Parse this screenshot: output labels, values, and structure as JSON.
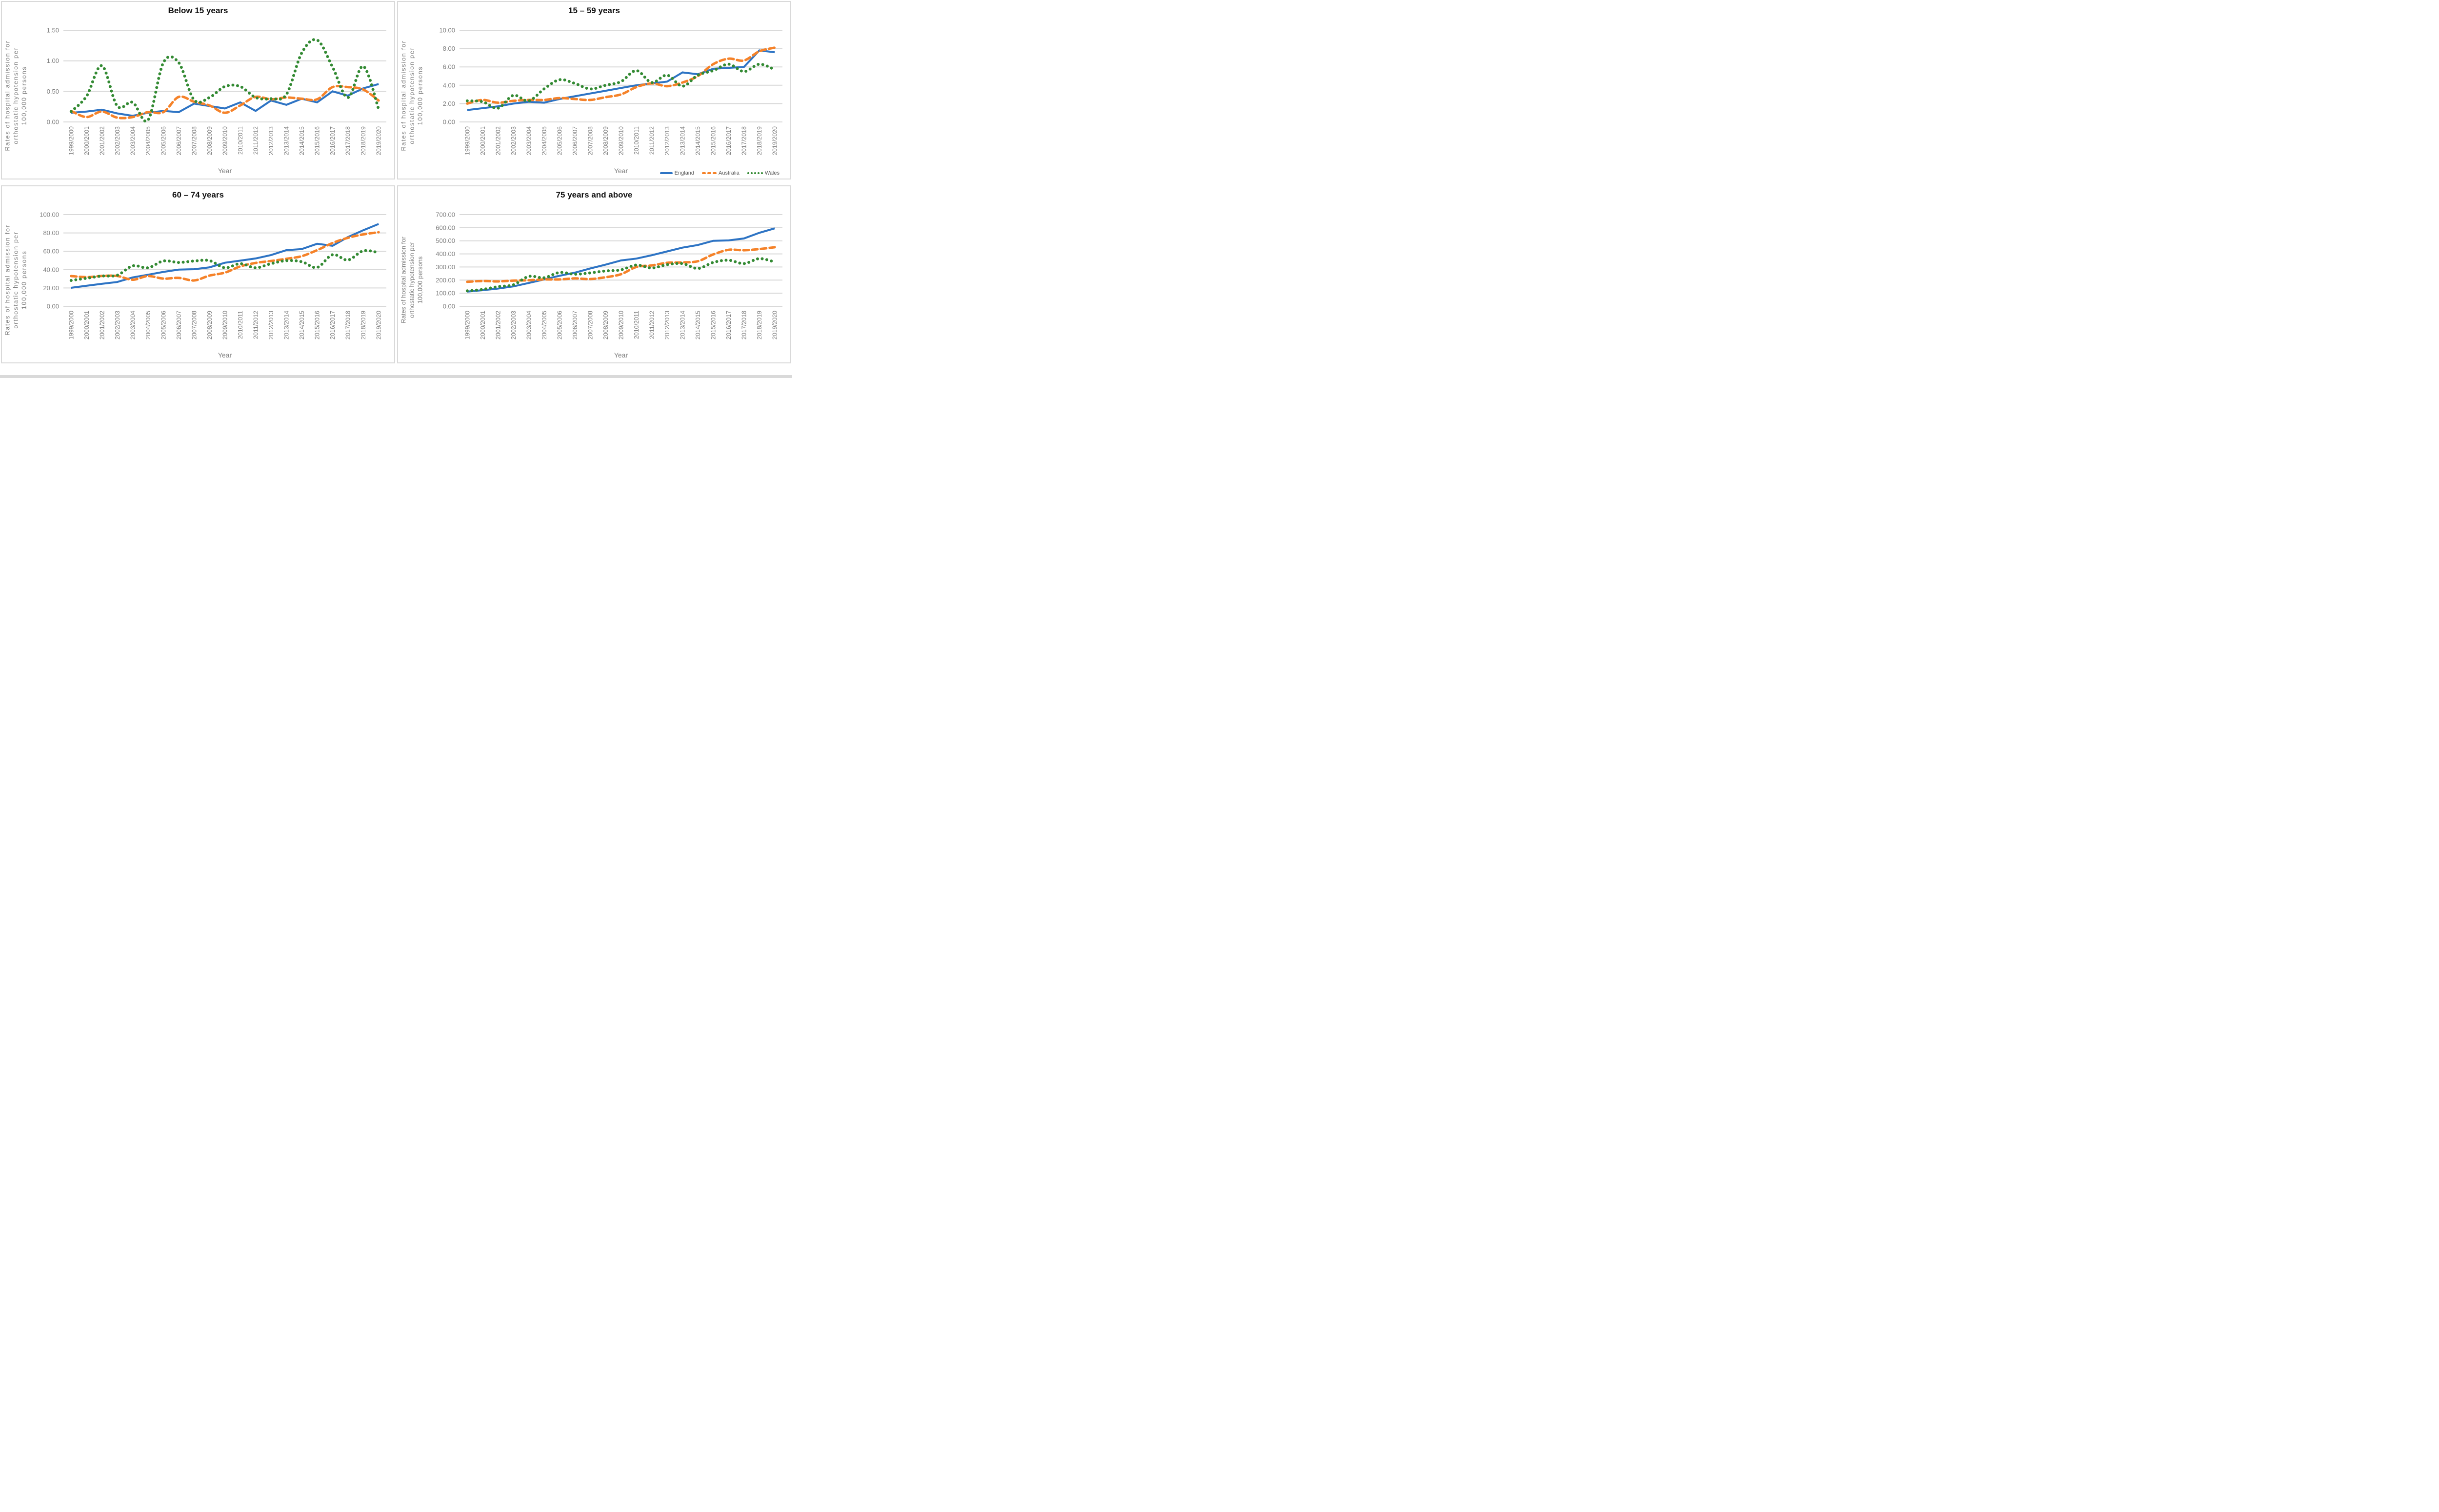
{
  "colors": {
    "england": "#2E74C4",
    "australia": "#F58229",
    "wales": "#338A33",
    "gridline": "#D9D9D9",
    "tick_text": "#7F7F7F",
    "axis_title_text": "#7F7F7F",
    "chart_title_text": "#111111",
    "panel_border": "#D9D9D9",
    "legend_text": "#595959"
  },
  "axis": {
    "ylabel_lines": [
      "Rates of hospital admission for",
      "orthostatic hypotension per",
      "100,000 persons"
    ],
    "xlabel": "Year"
  },
  "legend": {
    "items": [
      {
        "name": "england",
        "label": "England",
        "style": "solid"
      },
      {
        "name": "australia",
        "label": "Australia",
        "style": "dashed"
      },
      {
        "name": "wales",
        "label": "Wales",
        "style": "dotted"
      }
    ]
  },
  "chart_data": {
    "type": "line",
    "categories": [
      "1999/2000",
      "2000/2001",
      "2001/2002",
      "2002/2003",
      "2003/2004",
      "2004/2005",
      "2005/2006",
      "2006/2007",
      "2007/2008",
      "2008/2009",
      "2009/2010",
      "2010/2011",
      "2011/2012",
      "2012/2013",
      "2013/2014",
      "2014/2015",
      "2015/2016",
      "2016/2017",
      "2017/2018",
      "2018/2019",
      "2019/2020"
    ],
    "grid": "horizontal-only",
    "legend_position": "bottom-right-of-second-chart",
    "charts": [
      {
        "title": "Below 15 years",
        "ylim": [
          0,
          1.5
        ],
        "yticks": [
          0,
          0.5,
          1,
          1.5
        ],
        "ytick_labels": [
          "0.00",
          "0.50",
          "1.00",
          "1.50"
        ],
        "series": [
          {
            "name": "England",
            "color": "england",
            "style": "solid",
            "smooth": false,
            "values": [
              0.15,
              0.17,
              0.2,
              0.14,
              0.1,
              0.15,
              0.18,
              0.16,
              0.3,
              0.26,
              0.22,
              0.32,
              0.18,
              0.35,
              0.28,
              0.38,
              0.32,
              0.5,
              0.43,
              0.55,
              0.62
            ]
          },
          {
            "name": "Australia",
            "color": "australia",
            "style": "dashed",
            "smooth": true,
            "values": [
              0.18,
              0.08,
              0.17,
              0.07,
              0.08,
              0.16,
              0.16,
              0.41,
              0.33,
              0.27,
              0.15,
              0.27,
              0.41,
              0.37,
              0.4,
              0.38,
              0.37,
              0.57,
              0.57,
              0.53,
              0.35
            ]
          },
          {
            "name": "Wales",
            "color": "wales",
            "style": "dotted",
            "smooth": true,
            "values": [
              0.17,
              0.42,
              0.92,
              0.26,
              0.32,
              0.03,
              0.97,
              0.97,
              0.36,
              0.4,
              0.58,
              0.58,
              0.4,
              0.38,
              0.45,
              1.13,
              1.34,
              0.9,
              0.4,
              0.91,
              0.21
            ]
          }
        ]
      },
      {
        "title": "15 – 59 years",
        "ylim": [
          0,
          10
        ],
        "yticks": [
          0,
          2,
          4,
          6,
          8,
          10
        ],
        "ytick_labels": [
          "0.00",
          "2.00",
          "4.00",
          "6.00",
          "8.00",
          "10.00"
        ],
        "show_legend": true,
        "series": [
          {
            "name": "England",
            "color": "england",
            "style": "solid",
            "smooth": false,
            "values": [
              1.3,
              1.5,
              1.7,
              2.0,
              2.2,
              2.1,
              2.5,
              2.8,
              3.1,
              3.4,
              3.7,
              4.0,
              4.2,
              4.4,
              5.4,
              5.2,
              5.8,
              5.9,
              6.0,
              7.8,
              7.6
            ]
          },
          {
            "name": "Australia",
            "color": "australia",
            "style": "dashed",
            "smooth": true,
            "values": [
              2.0,
              2.4,
              2.1,
              2.3,
              2.4,
              2.4,
              2.6,
              2.5,
              2.4,
              2.7,
              3.0,
              3.8,
              4.2,
              3.9,
              4.3,
              5.0,
              6.3,
              6.9,
              6.7,
              7.7,
              8.1
            ]
          },
          {
            "name": "Wales",
            "color": "wales",
            "style": "dotted",
            "smooth": true,
            "values": [
              2.3,
              2.2,
              1.5,
              2.9,
              2.3,
              3.6,
              4.6,
              4.2,
              3.6,
              4.0,
              4.4,
              5.6,
              4.3,
              5.1,
              3.9,
              5.1,
              5.6,
              6.3,
              5.5,
              6.3,
              5.7
            ]
          }
        ]
      },
      {
        "title": "60 – 74 years",
        "ylim": [
          0,
          100
        ],
        "yticks": [
          0,
          20,
          40,
          60,
          80,
          100
        ],
        "ytick_labels": [
          "0.00",
          "20.00",
          "40.00",
          "60.00",
          "80.00",
          "100.00"
        ],
        "series": [
          {
            "name": "England",
            "color": "england",
            "style": "solid",
            "smooth": false,
            "values": [
              20.2,
              22.4,
              24.5,
              26.5,
              31.5,
              34.4,
              37.5,
              40.0,
              40.4,
              42.5,
              47.5,
              49.8,
              52.2,
              55.9,
              61.2,
              62.4,
              68.2,
              66.0,
              75.5,
              82.9,
              89.8
            ]
          },
          {
            "name": "Australia",
            "color": "australia",
            "style": "dashed",
            "smooth": true,
            "values": [
              33.0,
              31.8,
              33.1,
              33.1,
              29.0,
              33.0,
              30.2,
              31.0,
              28.2,
              33.5,
              36.7,
              43.5,
              47.3,
              49.4,
              51.8,
              54.7,
              61.2,
              69.0,
              74.7,
              78.4,
              80.8
            ]
          },
          {
            "name": "Wales",
            "color": "wales",
            "style": "dotted",
            "smooth": true,
            "values": [
              28.2,
              30.6,
              33.0,
              33.9,
              44.1,
              42.0,
              49.4,
              47.8,
              49.4,
              49.8,
              42.0,
              46.5,
              42.0,
              46.5,
              49.8,
              48.6,
              42.4,
              56.3,
              50.5,
              60.5,
              58.5
            ]
          }
        ]
      },
      {
        "title": "75 years and above",
        "ylim": [
          0,
          700
        ],
        "yticks": [
          0,
          100,
          200,
          300,
          400,
          500,
          600,
          700
        ],
        "ytick_labels": [
          "0.00",
          "100.00",
          "200.00",
          "300.00",
          "400.00",
          "500.00",
          "600.00",
          "700.00"
        ],
        "plain_y_title": true,
        "series": [
          {
            "name": "England",
            "color": "england",
            "style": "solid",
            "smooth": false,
            "values": [
              112,
              123,
              135,
              152,
              178,
              205,
              233,
              257,
              289,
              318,
              350,
              364,
              390,
              419,
              448,
              468,
              500,
              503,
              518,
              561,
              595
            ]
          },
          {
            "name": "Australia",
            "color": "australia",
            "style": "dashed",
            "smooth": true,
            "values": [
              187,
              193,
              190,
              196,
              199,
              205,
              205,
              213,
              208,
              222,
              245,
              300,
              312,
              332,
              335,
              344,
              396,
              431,
              428,
              437,
              451
            ]
          },
          {
            "name": "Wales",
            "color": "wales",
            "style": "dotted",
            "smooth": true,
            "values": [
              118,
              129,
              150,
              164,
              228,
              218,
              258,
              245,
              255,
              270,
              278,
              315,
              292,
              318,
              326,
              289,
              335,
              352,
              326,
              364,
              338
            ]
          }
        ]
      }
    ]
  }
}
